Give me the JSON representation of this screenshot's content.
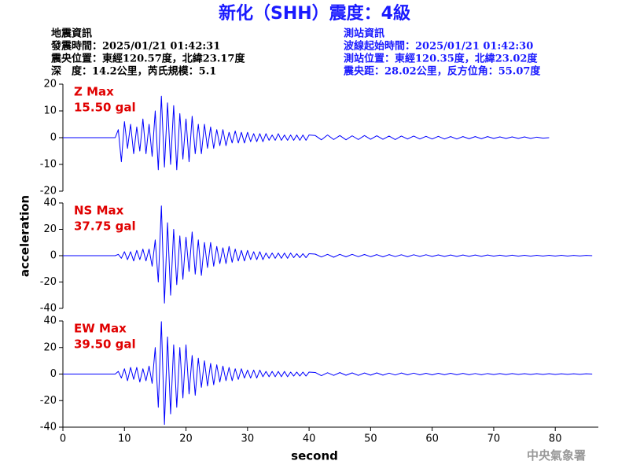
{
  "header": {
    "title": "新化（SHH）震度：4級",
    "left": [
      "地震資訊",
      "發震時間：2025/01/21 01:42:31",
      "震央位置：東經120.57度，北緯23.17度",
      "深　度：14.2公里，芮氏規模：5.1"
    ],
    "right": [
      "測站資訊",
      "波線起始時間：2025/01/21 01:42:30",
      "測站位置：東經120.35度，北緯23.02度",
      "震央距：28.02公里，反方位角：55.07度"
    ]
  },
  "footer": "中央氣象署",
  "chart_data": [
    {
      "type": "line",
      "annotation": [
        "Z Max",
        "15.50 gal"
      ],
      "x": [
        0,
        8.5,
        9,
        9.5,
        10,
        10.5,
        11,
        11.5,
        12,
        12.5,
        13,
        13.5,
        14,
        14.5,
        15,
        15.5,
        16,
        16.5,
        17,
        17.5,
        18,
        18.5,
        19,
        19.5,
        20,
        20.5,
        21,
        21.5,
        22,
        22.5,
        23,
        23.5,
        24,
        24.5,
        25,
        25.5,
        26,
        26.5,
        27,
        27.5,
        28,
        28.5,
        29,
        29.5,
        30,
        30.5,
        31,
        31.5,
        32,
        32.5,
        33,
        33.5,
        34,
        34.5,
        35,
        35.5,
        36,
        36.5,
        37,
        37.5,
        38,
        38.5,
        39,
        39.5,
        40,
        41,
        42,
        43,
        44,
        45,
        46,
        47,
        48,
        49,
        50,
        51,
        52,
        53,
        54,
        55,
        56,
        57,
        58,
        59,
        60,
        61,
        62,
        63,
        64,
        65,
        66,
        67,
        68,
        69,
        70,
        71,
        72,
        73,
        74,
        75,
        76,
        77,
        78,
        79,
        80,
        81,
        82,
        83,
        84,
        85,
        86
      ],
      "series": [
        {
          "color": "#0000ff",
          "values": [
            0,
            0,
            3,
            -9,
            6,
            -4,
            5,
            -6,
            4,
            -5,
            7,
            -6,
            5,
            -7,
            10,
            -12,
            15.5,
            -11,
            13,
            -10,
            12,
            -12,
            9,
            -8,
            7,
            -9,
            8,
            -6,
            5,
            -6,
            5,
            -4,
            4,
            -4,
            3,
            -3,
            3,
            -3,
            2,
            -2,
            2.5,
            -2,
            2,
            -2,
            2,
            -1.5,
            1.5,
            -1.5,
            1.5,
            -1.5,
            1.5,
            -1,
            1,
            -1,
            1.5,
            -1,
            1,
            -1,
            1,
            -1,
            1,
            -1,
            1,
            -1,
            1,
            0.8,
            -0.8,
            1,
            -0.7,
            0.8,
            -0.8,
            0.7,
            -0.7,
            0.8,
            -0.6,
            0.7,
            -0.6,
            0.6,
            -0.7,
            0.6,
            -0.5,
            0.6,
            -0.5,
            0.5,
            -0.5,
            0.5,
            -0.5,
            0.4,
            -0.5,
            0.4,
            -0.4,
            0.4,
            -0.4,
            0.4,
            -0.3,
            0.3,
            -0.3,
            0.3,
            -0.3,
            0.3,
            -0.3,
            0.2,
            -0.2,
            0,
            null,
            null,
            null,
            null,
            null,
            null,
            null
          ]
        }
      ],
      "xlim": [
        0,
        87
      ],
      "ylim": [
        -20,
        20
      ],
      "yticks": [
        -20,
        -10,
        0,
        10,
        20
      ]
    },
    {
      "type": "line",
      "annotation": [
        "NS Max",
        "37.75 gal"
      ],
      "ylabel": "acceleration",
      "x": [
        0,
        8.5,
        9,
        9.5,
        10,
        10.5,
        11,
        11.5,
        12,
        12.5,
        13,
        13.5,
        14,
        14.5,
        15,
        15.5,
        16,
        16.5,
        17,
        17.5,
        18,
        18.5,
        19,
        19.5,
        20,
        20.5,
        21,
        21.5,
        22,
        22.5,
        23,
        23.5,
        24,
        24.5,
        25,
        25.5,
        26,
        26.5,
        27,
        27.5,
        28,
        28.5,
        29,
        29.5,
        30,
        30.5,
        31,
        31.5,
        32,
        32.5,
        33,
        33.5,
        34,
        34.5,
        35,
        35.5,
        36,
        36.5,
        37,
        37.5,
        38,
        38.5,
        39,
        39.5,
        40,
        41,
        42,
        43,
        44,
        45,
        46,
        47,
        48,
        49,
        50,
        51,
        52,
        53,
        54,
        55,
        56,
        57,
        58,
        59,
        60,
        61,
        62,
        63,
        64,
        65,
        66,
        67,
        68,
        69,
        70,
        71,
        72,
        73,
        74,
        75,
        76,
        77,
        78,
        79,
        80,
        81,
        82,
        83,
        84,
        85,
        86
      ],
      "series": [
        {
          "color": "#0000ff",
          "values": [
            0,
            0,
            1,
            -2,
            3,
            -3,
            3,
            -4,
            4,
            -3,
            5,
            -4,
            5,
            -8,
            12,
            -20,
            37.75,
            -36,
            25,
            -30,
            20,
            -22,
            15,
            -18,
            14,
            -12,
            18,
            -14,
            12,
            -15,
            10,
            -9,
            10,
            -8,
            7,
            -6,
            6,
            -6,
            7,
            -5,
            5,
            -4,
            4,
            -4,
            4,
            -3,
            3,
            -3,
            3,
            -3,
            2,
            -2,
            2,
            -2,
            2,
            -2,
            2,
            -2,
            2,
            -1.5,
            1.5,
            -1.5,
            1.5,
            -1.5,
            1.5,
            1.2,
            -1,
            1,
            -1.2,
            1,
            -0.9,
            1,
            -0.8,
            0.9,
            -0.8,
            0.8,
            -0.9,
            0.8,
            -0.7,
            0.7,
            -0.8,
            0.7,
            -0.6,
            0.7,
            -0.6,
            0.6,
            -0.6,
            0.5,
            -0.6,
            0.5,
            -0.5,
            0.5,
            -0.5,
            0.5,
            -0.4,
            0.4,
            -0.4,
            0.4,
            -0.4,
            0.3,
            -0.4,
            0.3,
            -0.3,
            0.3,
            -0.3,
            0.3,
            -0.3,
            0.2,
            -0.2,
            0.2,
            0
          ]
        }
      ],
      "xlim": [
        0,
        87
      ],
      "ylim": [
        -40,
        40
      ],
      "yticks": [
        -40,
        -20,
        0,
        20,
        40
      ]
    },
    {
      "type": "line",
      "annotation": [
        "EW Max",
        "39.50 gal"
      ],
      "xlabel": "second",
      "x": [
        0,
        8.5,
        9,
        9.5,
        10,
        10.5,
        11,
        11.5,
        12,
        12.5,
        13,
        13.5,
        14,
        14.5,
        15,
        15.5,
        16,
        16.5,
        17,
        17.5,
        18,
        18.5,
        19,
        19.5,
        20,
        20.5,
        21,
        21.5,
        22,
        22.5,
        23,
        23.5,
        24,
        24.5,
        25,
        25.5,
        26,
        26.5,
        27,
        27.5,
        28,
        28.5,
        29,
        29.5,
        30,
        30.5,
        31,
        31.5,
        32,
        32.5,
        33,
        33.5,
        34,
        34.5,
        35,
        35.5,
        36,
        36.5,
        37,
        37.5,
        38,
        38.5,
        39,
        39.5,
        40,
        41,
        42,
        43,
        44,
        45,
        46,
        47,
        48,
        49,
        50,
        51,
        52,
        53,
        54,
        55,
        56,
        57,
        58,
        59,
        60,
        61,
        62,
        63,
        64,
        65,
        66,
        67,
        68,
        69,
        70,
        71,
        72,
        73,
        74,
        75,
        76,
        77,
        78,
        79,
        80,
        81,
        82,
        83,
        84,
        85,
        86
      ],
      "series": [
        {
          "color": "#0000ff",
          "values": [
            0,
            0,
            2,
            -3,
            4,
            -5,
            5,
            -4,
            5,
            -6,
            4,
            -5,
            6,
            -7,
            20,
            -25,
            39.5,
            -38,
            28,
            -30,
            22,
            -25,
            20,
            -18,
            22,
            -15,
            14,
            -16,
            12,
            -10,
            10,
            -9,
            8,
            -8,
            7,
            -6,
            6,
            -5,
            5,
            -5,
            4,
            -4,
            4,
            -3,
            3,
            -3,
            3,
            -3,
            3,
            -2,
            2,
            -2,
            2,
            -2,
            2,
            -2,
            2,
            -2,
            1.5,
            -1.5,
            1.5,
            -1.5,
            1.5,
            -1.5,
            1.5,
            1.2,
            -1.2,
            1,
            -1,
            1.1,
            -0.9,
            0.9,
            -1,
            0.8,
            -0.8,
            0.9,
            -0.8,
            0.7,
            -0.7,
            0.8,
            -0.6,
            0.7,
            -0.6,
            0.6,
            -0.6,
            0.6,
            -0.5,
            0.6,
            -0.5,
            0.5,
            -0.5,
            0.4,
            -0.5,
            0.4,
            -0.4,
            0.4,
            -0.4,
            0.4,
            -0.3,
            0.3,
            -0.3,
            0.3,
            -0.3,
            0.3,
            -0.3,
            0.2,
            -0.2,
            0.2,
            -0.2,
            0.2,
            0
          ]
        }
      ],
      "xlim": [
        0,
        87
      ],
      "ylim": [
        -40,
        40
      ],
      "yticks": [
        -40,
        -20,
        0,
        20,
        40
      ],
      "xticks": [
        0,
        10,
        20,
        30,
        40,
        50,
        60,
        70,
        80
      ]
    }
  ]
}
